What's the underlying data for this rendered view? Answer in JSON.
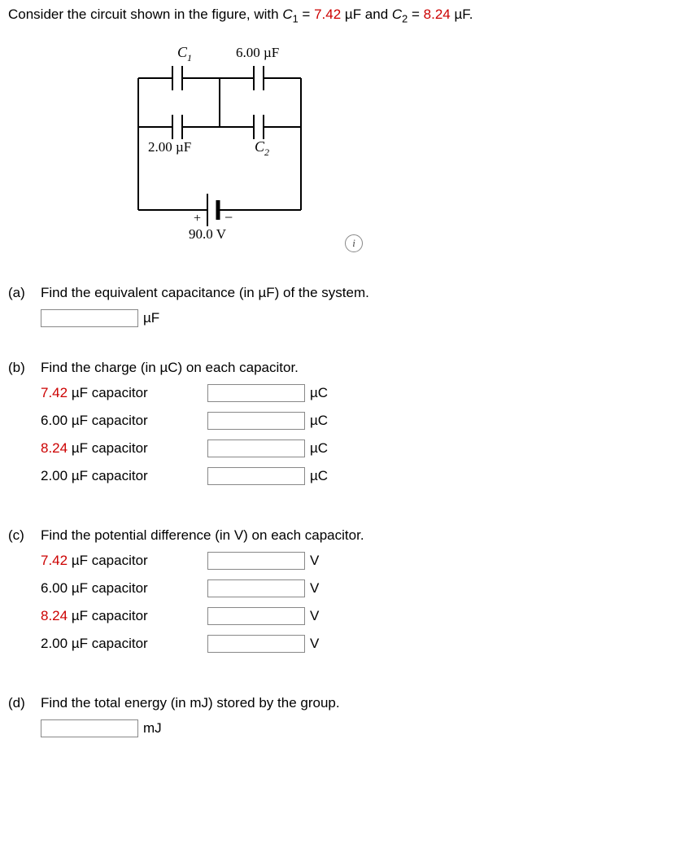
{
  "prompt": {
    "text1": "Consider the circuit shown in the figure, with ",
    "c1_sym": "C",
    "c1_sub": "1",
    "eq": " = ",
    "c1_val": "7.42",
    "uf": " µF",
    "and": " and ",
    "c2_sym": "C",
    "c2_sub": "2",
    "c2_val": "8.24",
    "uf2": " µF."
  },
  "diagram": {
    "c1_label": "C",
    "c1_sub": "1",
    "top_cap_label": "6.00 µF",
    "bottom_left_label": "2.00 µF",
    "c2_label": "C",
    "c2_sub": "2",
    "voltage": "90.0 V",
    "plus": "+",
    "minus": "−",
    "stroke": "#000000",
    "wire_width": 2
  },
  "parts": {
    "a": {
      "label": "(a)",
      "question": "Find the equivalent capacitance (in µF) of the system.",
      "unit": "µF"
    },
    "b": {
      "label": "(b)",
      "question": "Find the charge (in µC) on each capacitor.",
      "rows": [
        {
          "val": "7.42",
          "text": " µF capacitor",
          "highlight": true,
          "unit": "µC"
        },
        {
          "val": "6.00",
          "text": " µF capacitor",
          "highlight": false,
          "unit": "µC"
        },
        {
          "val": "8.24",
          "text": " µF capacitor",
          "highlight": true,
          "unit": "µC"
        },
        {
          "val": "2.00",
          "text": " µF capacitor",
          "highlight": false,
          "unit": "µC"
        }
      ]
    },
    "c": {
      "label": "(c)",
      "question": "Find the potential difference (in V) on each capacitor.",
      "rows": [
        {
          "val": "7.42",
          "text": " µF capacitor",
          "highlight": true,
          "unit": "V"
        },
        {
          "val": "6.00",
          "text": " µF capacitor",
          "highlight": false,
          "unit": "V"
        },
        {
          "val": "8.24",
          "text": " µF capacitor",
          "highlight": true,
          "unit": "V"
        },
        {
          "val": "2.00",
          "text": " µF capacitor",
          "highlight": false,
          "unit": "V"
        }
      ]
    },
    "d": {
      "label": "(d)",
      "question": "Find the total energy (in mJ) stored by the group.",
      "unit": "mJ"
    }
  },
  "info_icon": "i"
}
